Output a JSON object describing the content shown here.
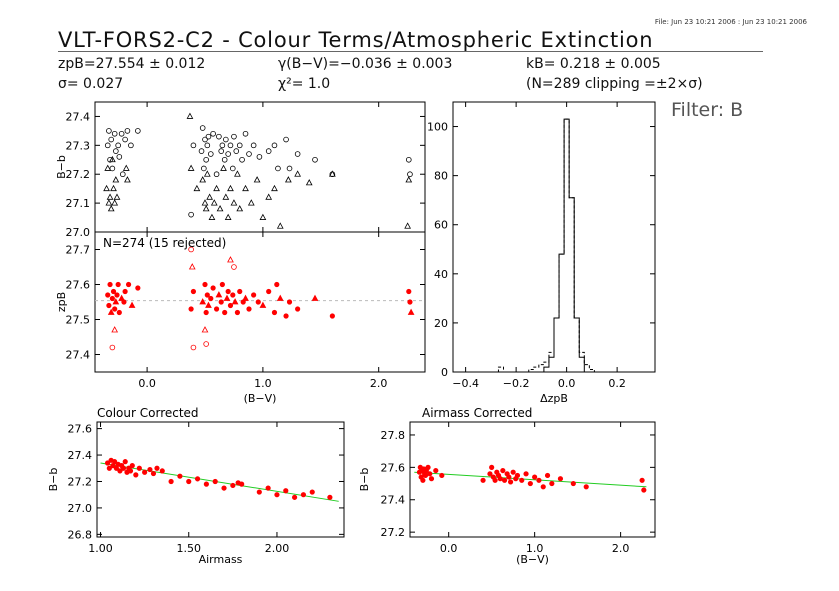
{
  "header": {
    "fileinfo": "File: Jun 23 10:21 2006 : Jun 23 10:21 2006",
    "title": "VLT-FORS2-C2 - Colour Terms/Atmospheric Extinction",
    "zp": "zpB=27.554 ± 0.012",
    "sigma": "σ= 0.027",
    "gamma": "γ(B−V)=−0.036 ± 0.003",
    "chi2": "χ²= 1.0",
    "k": "kB= 0.218 ± 0.005",
    "clip": "(N=289 clipping =±2×σ)",
    "filter": "Filter: B"
  },
  "colors": {
    "points": "#ff0000",
    "fit": "#22cc22",
    "axis": "#000000",
    "zero_line": "#bbbbbb"
  },
  "chart_data": [
    {
      "type": "scatter",
      "ylabel": "B−b",
      "xlim": [
        -0.45,
        2.4
      ],
      "ylim": [
        27.0,
        27.45
      ],
      "yticks": [
        27.0,
        27.1,
        27.2,
        27.3,
        27.4
      ],
      "markers": "open circles and open triangles",
      "series": [
        {
          "marker": "circle",
          "x": [
            -0.34,
            -0.33,
            -0.32,
            -0.31,
            -0.3,
            -0.28,
            -0.27,
            -0.25,
            -0.24,
            -0.22,
            -0.21,
            -0.19,
            -0.17,
            -0.14,
            -0.08,
            0.38,
            0.4,
            0.47,
            0.48,
            0.49,
            0.5,
            0.51,
            0.52,
            0.53,
            0.55,
            0.57,
            0.6,
            0.62,
            0.64,
            0.65,
            0.67,
            0.68,
            0.7,
            0.72,
            0.74,
            0.75,
            0.77,
            0.8,
            0.82,
            0.85,
            0.88,
            0.92,
            0.97,
            1.05,
            1.1,
            1.13,
            1.2,
            1.23,
            1.3,
            1.45,
            1.6,
            2.26,
            2.27
          ],
          "y": [
            27.3,
            27.35,
            27.25,
            27.32,
            27.22,
            27.34,
            27.28,
            27.3,
            27.26,
            27.34,
            27.2,
            27.32,
            27.35,
            27.3,
            27.35,
            27.06,
            27.3,
            27.28,
            27.36,
            27.22,
            27.32,
            27.25,
            27.3,
            27.33,
            27.27,
            27.34,
            27.2,
            27.33,
            27.28,
            27.3,
            27.25,
            27.32,
            27.27,
            27.3,
            27.22,
            27.33,
            27.28,
            27.3,
            27.25,
            27.34,
            27.27,
            27.3,
            27.26,
            27.28,
            27.3,
            27.22,
            27.32,
            27.22,
            27.27,
            27.25,
            27.2,
            27.25,
            27.2
          ]
        },
        {
          "marker": "triangle",
          "x": [
            -0.35,
            -0.34,
            -0.33,
            -0.32,
            -0.31,
            -0.3,
            -0.29,
            -0.28,
            -0.27,
            -0.26,
            -0.18,
            -0.17,
            0.37,
            0.38,
            0.43,
            0.48,
            0.5,
            0.51,
            0.52,
            0.54,
            0.56,
            0.58,
            0.6,
            0.63,
            0.66,
            0.68,
            0.7,
            0.72,
            0.75,
            0.78,
            0.8,
            0.85,
            0.9,
            0.95,
            1.0,
            1.05,
            1.1,
            1.15,
            1.22,
            1.3,
            1.4,
            1.6,
            2.25,
            2.26
          ],
          "y": [
            27.15,
            27.22,
            27.1,
            27.12,
            27.08,
            27.25,
            27.15,
            27.1,
            27.18,
            27.12,
            27.22,
            27.18,
            27.4,
            27.22,
            27.15,
            27.18,
            27.1,
            27.08,
            27.2,
            27.12,
            27.05,
            27.1,
            27.15,
            27.08,
            27.22,
            27.12,
            27.05,
            27.15,
            27.1,
            27.2,
            27.08,
            27.15,
            27.1,
            27.18,
            27.05,
            27.12,
            27.15,
            27.02,
            27.18,
            27.2,
            27.17,
            27.2,
            27.02,
            27.18
          ]
        }
      ]
    },
    {
      "type": "scatter",
      "annotation": "N=274 (15 rejected)",
      "ylabel": "zpB",
      "xlabel": "(B−V)",
      "xlim": [
        -0.45,
        2.4
      ],
      "ylim": [
        27.35,
        27.75
      ],
      "xticks": [
        0.0,
        1.0,
        2.0
      ],
      "xtick_labels": [
        "0.0",
        "1.0",
        "2.0"
      ],
      "yticks": [
        27.4,
        27.5,
        27.6,
        27.7
      ],
      "reference_line": 27.554,
      "accepted": {
        "x": [
          -0.34,
          -0.33,
          -0.32,
          -0.31,
          -0.3,
          -0.29,
          -0.28,
          -0.27,
          -0.26,
          -0.25,
          -0.24,
          -0.22,
          -0.2,
          -0.19,
          -0.16,
          -0.13,
          -0.08,
          0.38,
          0.4,
          0.48,
          0.5,
          0.51,
          0.52,
          0.53,
          0.55,
          0.57,
          0.6,
          0.62,
          0.64,
          0.65,
          0.67,
          0.69,
          0.7,
          0.72,
          0.74,
          0.76,
          0.78,
          0.8,
          0.83,
          0.85,
          0.88,
          0.92,
          0.96,
          1.0,
          1.05,
          1.1,
          1.12,
          1.15,
          1.2,
          1.23,
          1.3,
          1.45,
          1.6,
          2.26,
          2.27,
          2.28
        ],
        "y": [
          27.57,
          27.54,
          27.6,
          27.52,
          27.56,
          27.58,
          27.53,
          27.55,
          27.57,
          27.6,
          27.52,
          27.56,
          27.55,
          27.58,
          27.6,
          27.54,
          27.59,
          27.53,
          27.58,
          27.55,
          27.6,
          27.52,
          27.57,
          27.54,
          27.56,
          27.59,
          27.53,
          27.57,
          27.55,
          27.6,
          27.52,
          27.56,
          27.58,
          27.54,
          27.57,
          27.55,
          27.52,
          27.58,
          27.55,
          27.56,
          27.53,
          27.57,
          27.55,
          27.54,
          27.58,
          27.52,
          27.6,
          27.56,
          27.51,
          27.55,
          27.53,
          27.56,
          27.51,
          27.58,
          27.55,
          27.52
        ]
      },
      "rejected": {
        "x": [
          -0.3,
          -0.28,
          0.38,
          0.39,
          0.4,
          0.5,
          0.51,
          0.72,
          0.75
        ],
        "y": [
          27.42,
          27.47,
          27.7,
          27.65,
          27.42,
          27.47,
          27.43,
          27.67,
          27.65
        ]
      }
    },
    {
      "type": "histogram",
      "xlabel": "ΔzpB",
      "xlim": [
        -0.45,
        0.35
      ],
      "ylim": [
        0,
        110
      ],
      "xticks": [
        -0.4,
        -0.2,
        0.0,
        0.2
      ],
      "xtick_labels": [
        "−0.4",
        "−0.2",
        "0.0",
        "0.2"
      ],
      "yticks": [
        0,
        20,
        40,
        60,
        80,
        100
      ],
      "bin_width": 0.02,
      "bins_left": [
        -0.45,
        -0.27,
        -0.25,
        -0.15,
        -0.13,
        -0.11,
        -0.09,
        -0.07,
        -0.05,
        -0.03,
        -0.01,
        0.01,
        0.03,
        0.05,
        0.07,
        0.09,
        0.11
      ],
      "series": [
        {
          "name": "all",
          "style": "dashed",
          "values": [
            0,
            2,
            0,
            1,
            2,
            3,
            4,
            8,
            22,
            48,
            103,
            71,
            22,
            8,
            3,
            1,
            0
          ]
        },
        {
          "name": "clipped",
          "style": "solid",
          "values": [
            0,
            0,
            0,
            0,
            0,
            0,
            2,
            6,
            22,
            48,
            103,
            71,
            22,
            6,
            0,
            0,
            0
          ]
        }
      ]
    },
    {
      "type": "scatter",
      "title": "Colour Corrected",
      "xlabel": "Airmass",
      "ylabel": "B−b",
      "xlim": [
        0.98,
        2.38
      ],
      "ylim": [
        26.78,
        27.65
      ],
      "xticks": [
        1.0,
        1.5,
        2.0
      ],
      "xtick_labels": [
        "1.00",
        "1.50",
        "2.00"
      ],
      "yticks": [
        26.8,
        27.0,
        27.2,
        27.4,
        27.6
      ],
      "fit_line": {
        "x": [
          1.0,
          2.35
        ],
        "y": [
          27.34,
          27.05
        ]
      },
      "x": [
        1.04,
        1.05,
        1.06,
        1.07,
        1.08,
        1.09,
        1.1,
        1.11,
        1.12,
        1.13,
        1.14,
        1.15,
        1.16,
        1.17,
        1.18,
        1.2,
        1.22,
        1.25,
        1.28,
        1.3,
        1.32,
        1.35,
        1.4,
        1.45,
        1.5,
        1.55,
        1.6,
        1.65,
        1.7,
        1.75,
        1.78,
        1.8,
        1.9,
        1.95,
        2.0,
        2.05,
        2.1,
        2.15,
        2.2,
        2.3
      ],
      "y": [
        27.34,
        27.3,
        27.36,
        27.32,
        27.35,
        27.3,
        27.33,
        27.28,
        27.32,
        27.3,
        27.35,
        27.27,
        27.3,
        27.28,
        27.32,
        27.25,
        27.3,
        27.27,
        27.29,
        27.26,
        27.3,
        27.28,
        27.2,
        27.24,
        27.2,
        27.22,
        27.18,
        27.2,
        27.15,
        27.17,
        27.19,
        27.18,
        27.12,
        27.15,
        27.1,
        27.13,
        27.08,
        27.1,
        27.12,
        27.08
      ]
    },
    {
      "type": "scatter",
      "title": "Airmass Corrected",
      "xlabel": "(B−V)",
      "ylabel": "B−b",
      "xlim": [
        -0.45,
        2.4
      ],
      "ylim": [
        27.17,
        27.88
      ],
      "xticks": [
        0.0,
        1.0,
        2.0
      ],
      "xtick_labels": [
        "0.0",
        "1.0",
        "2.0"
      ],
      "yticks": [
        27.2,
        27.4,
        27.6,
        27.8
      ],
      "fit_line": {
        "x": [
          -0.4,
          2.3
        ],
        "y": [
          27.57,
          27.48
        ]
      },
      "x": [
        -0.34,
        -0.33,
        -0.32,
        -0.31,
        -0.3,
        -0.29,
        -0.28,
        -0.27,
        -0.26,
        -0.24,
        -0.22,
        -0.2,
        -0.15,
        -0.08,
        0.4,
        0.48,
        0.5,
        0.52,
        0.54,
        0.56,
        0.58,
        0.6,
        0.63,
        0.65,
        0.68,
        0.7,
        0.72,
        0.75,
        0.78,
        0.8,
        0.85,
        0.9,
        0.95,
        1.0,
        1.05,
        1.1,
        1.15,
        1.2,
        1.3,
        1.45,
        1.6,
        2.25,
        2.27
      ],
      "y": [
        27.57,
        27.6,
        27.54,
        27.58,
        27.52,
        27.59,
        27.56,
        27.55,
        27.58,
        27.6,
        27.56,
        27.53,
        27.58,
        27.55,
        27.52,
        27.56,
        27.6,
        27.54,
        27.52,
        27.57,
        27.55,
        27.53,
        27.58,
        27.52,
        27.56,
        27.54,
        27.51,
        27.57,
        27.53,
        27.55,
        27.52,
        27.56,
        27.5,
        27.54,
        27.52,
        27.48,
        27.55,
        27.5,
        27.53,
        27.5,
        27.48,
        27.52,
        27.46
      ]
    }
  ]
}
